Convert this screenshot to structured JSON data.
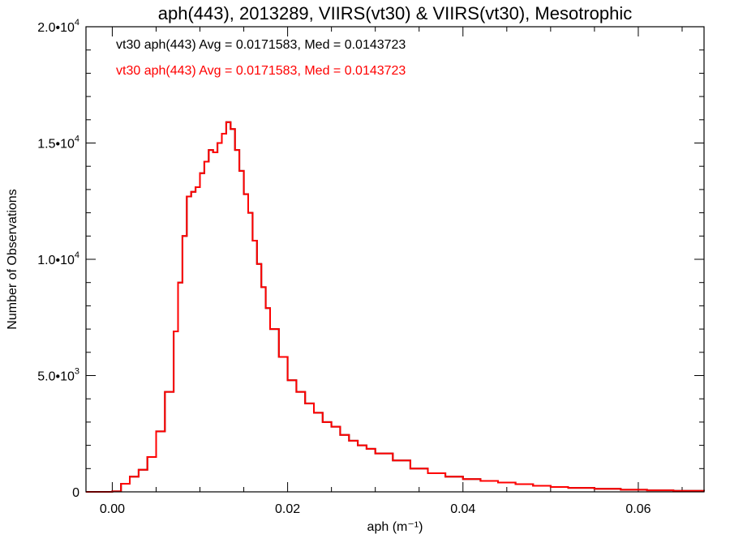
{
  "chart_data": {
    "type": "line",
    "title": "aph(443), 2013289, VIIRS(vt30) & VIIRS(vt30), Mesotrophic",
    "xlabel": "aph (m⁻¹)",
    "ylabel": "Number of Observations",
    "xlim": [
      -0.003,
      0.0675
    ],
    "ylim": [
      0,
      20000
    ],
    "xticks": [
      {
        "value": 0.0,
        "label": "0.00"
      },
      {
        "value": 0.02,
        "label": "0.02"
      },
      {
        "value": 0.04,
        "label": "0.04"
      },
      {
        "value": 0.06,
        "label": "0.06"
      }
    ],
    "yticks": [
      {
        "value": 0,
        "mantissa": "0",
        "exponent": ""
      },
      {
        "value": 5000,
        "mantissa": "5.0•10",
        "exponent": "3"
      },
      {
        "value": 10000,
        "mantissa": "1.0•10",
        "exponent": "4"
      },
      {
        "value": 15000,
        "mantissa": "1.5•10",
        "exponent": "4"
      },
      {
        "value": 20000,
        "mantissa": "2.0•10",
        "exponent": "4"
      }
    ],
    "grid": false,
    "legend_position": "top-left",
    "series": [
      {
        "label": "vt30 aph(443) Avg = 0.0171583, Med = 0.0143723",
        "color": "#000000",
        "x": [
          -0.003,
          0.0,
          0.001,
          0.002,
          0.003,
          0.004,
          0.005,
          0.006,
          0.007,
          0.0075,
          0.008,
          0.0085,
          0.009,
          0.0095,
          0.01,
          0.0105,
          0.011,
          0.0115,
          0.012,
          0.0125,
          0.013,
          0.0135,
          0.014,
          0.0145,
          0.015,
          0.0155,
          0.016,
          0.0165,
          0.017,
          0.0175,
          0.018,
          0.019,
          0.02,
          0.021,
          0.022,
          0.023,
          0.024,
          0.025,
          0.026,
          0.027,
          0.028,
          0.029,
          0.03,
          0.032,
          0.034,
          0.036,
          0.038,
          0.04,
          0.042,
          0.044,
          0.046,
          0.048,
          0.05,
          0.052,
          0.055,
          0.058,
          0.061,
          0.064,
          0.0675
        ],
        "y": [
          0,
          20,
          350,
          650,
          950,
          1500,
          2600,
          4300,
          6900,
          9000,
          11000,
          12700,
          12900,
          13100,
          13700,
          14200,
          14700,
          14600,
          15000,
          15400,
          15900,
          15600,
          14700,
          13800,
          12800,
          12000,
          10800,
          9800,
          8800,
          7900,
          7000,
          5800,
          4800,
          4300,
          3800,
          3400,
          3000,
          2800,
          2450,
          2200,
          2000,
          1850,
          1650,
          1350,
          1000,
          800,
          650,
          550,
          470,
          400,
          330,
          260,
          210,
          170,
          130,
          90,
          65,
          45,
          25
        ]
      },
      {
        "label": "vt30 aph(443) Avg = 0.0171583, Med = 0.0143723",
        "color": "#ff0000",
        "x": [
          -0.003,
          0.0,
          0.001,
          0.002,
          0.003,
          0.004,
          0.005,
          0.006,
          0.007,
          0.0075,
          0.008,
          0.0085,
          0.009,
          0.0095,
          0.01,
          0.0105,
          0.011,
          0.0115,
          0.012,
          0.0125,
          0.013,
          0.0135,
          0.014,
          0.0145,
          0.015,
          0.0155,
          0.016,
          0.0165,
          0.017,
          0.0175,
          0.018,
          0.019,
          0.02,
          0.021,
          0.022,
          0.023,
          0.024,
          0.025,
          0.026,
          0.027,
          0.028,
          0.029,
          0.03,
          0.032,
          0.034,
          0.036,
          0.038,
          0.04,
          0.042,
          0.044,
          0.046,
          0.048,
          0.05,
          0.052,
          0.055,
          0.058,
          0.061,
          0.064,
          0.0675
        ],
        "y": [
          0,
          20,
          350,
          650,
          950,
          1500,
          2600,
          4300,
          6900,
          9000,
          11000,
          12700,
          12900,
          13100,
          13700,
          14200,
          14700,
          14600,
          15000,
          15400,
          15900,
          15600,
          14700,
          13800,
          12800,
          12000,
          10800,
          9800,
          8800,
          7900,
          7000,
          5800,
          4800,
          4300,
          3800,
          3400,
          3000,
          2800,
          2450,
          2200,
          2000,
          1850,
          1650,
          1350,
          1000,
          800,
          650,
          550,
          470,
          400,
          330,
          260,
          210,
          170,
          130,
          90,
          65,
          45,
          25
        ]
      }
    ]
  }
}
